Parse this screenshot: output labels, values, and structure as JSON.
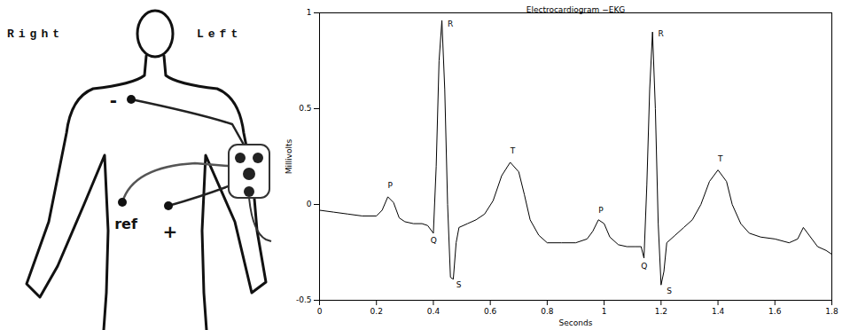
{
  "chart_data": {
    "type": "line",
    "title": "Electrocardiogram −EKG",
    "x_label": "Seconds",
    "y_label": "Millivolts",
    "x": [
      0,
      0.05,
      0.1,
      0.15,
      0.2,
      0.22,
      0.24,
      0.26,
      0.28,
      0.3,
      0.33,
      0.36,
      0.38,
      0.4,
      0.41,
      0.42,
      0.43,
      0.44,
      0.45,
      0.46,
      0.47,
      0.48,
      0.49,
      0.52,
      0.55,
      0.58,
      0.61,
      0.64,
      0.67,
      0.7,
      0.72,
      0.74,
      0.77,
      0.8,
      0.85,
      0.9,
      0.94,
      0.96,
      0.98,
      1.0,
      1.02,
      1.05,
      1.08,
      1.11,
      1.13,
      1.14,
      1.15,
      1.16,
      1.17,
      1.18,
      1.19,
      1.2,
      1.21,
      1.22,
      1.25,
      1.28,
      1.31,
      1.34,
      1.37,
      1.4,
      1.43,
      1.45,
      1.48,
      1.51,
      1.55,
      1.6,
      1.65,
      1.68,
      1.7,
      1.72,
      1.75,
      1.78,
      1.8
    ],
    "series": [
      {
        "name": "EKG",
        "color": "#000000",
        "values": [
          -0.03,
          -0.04,
          -0.05,
          -0.06,
          -0.06,
          -0.03,
          0.04,
          0.01,
          -0.07,
          -0.09,
          -0.1,
          -0.1,
          -0.11,
          -0.15,
          0.2,
          0.75,
          0.96,
          0.6,
          0.0,
          -0.38,
          -0.39,
          -0.2,
          -0.12,
          -0.1,
          -0.08,
          -0.05,
          0.02,
          0.15,
          0.22,
          0.17,
          0.05,
          -0.08,
          -0.16,
          -0.2,
          -0.2,
          -0.2,
          -0.18,
          -0.14,
          -0.08,
          -0.1,
          -0.17,
          -0.21,
          -0.22,
          -0.22,
          -0.22,
          -0.28,
          0.1,
          0.6,
          0.9,
          0.5,
          -0.1,
          -0.42,
          -0.35,
          -0.2,
          -0.16,
          -0.12,
          -0.08,
          0.0,
          0.12,
          0.18,
          0.12,
          0.0,
          -0.1,
          -0.15,
          -0.17,
          -0.18,
          -0.2,
          -0.18,
          -0.12,
          -0.16,
          -0.22,
          -0.24,
          -0.26
        ]
      }
    ],
    "xlim": [
      0,
      1.8
    ],
    "xticks": [
      0,
      0.2,
      0.4,
      0.6,
      0.8,
      1,
      1.2,
      1.4,
      1.6,
      1.8
    ],
    "ylim": [
      -0.5,
      1
    ],
    "yticks": [
      -0.5,
      0,
      0.5,
      1
    ],
    "grid": false,
    "annotations": [
      {
        "text": "P",
        "x": 0.24,
        "y": 0.1
      },
      {
        "text": "Q",
        "x": 0.39,
        "y": -0.19
      },
      {
        "text": "R",
        "x": 0.45,
        "y": 0.94
      },
      {
        "text": "S",
        "x": 0.48,
        "y": -0.42
      },
      {
        "text": "T",
        "x": 0.67,
        "y": 0.28
      },
      {
        "text": "P",
        "x": 0.98,
        "y": -0.03
      },
      {
        "text": "Q",
        "x": 1.13,
        "y": -0.32
      },
      {
        "text": "R",
        "x": 1.19,
        "y": 0.89
      },
      {
        "text": "S",
        "x": 1.22,
        "y": -0.45
      },
      {
        "text": "T",
        "x": 1.4,
        "y": 0.24
      }
    ]
  },
  "diagram": {
    "side_labels": {
      "right": "Right",
      "left": "Left"
    },
    "electrode_labels": {
      "negative": "-",
      "reference": "ref",
      "positive": "+"
    }
  }
}
